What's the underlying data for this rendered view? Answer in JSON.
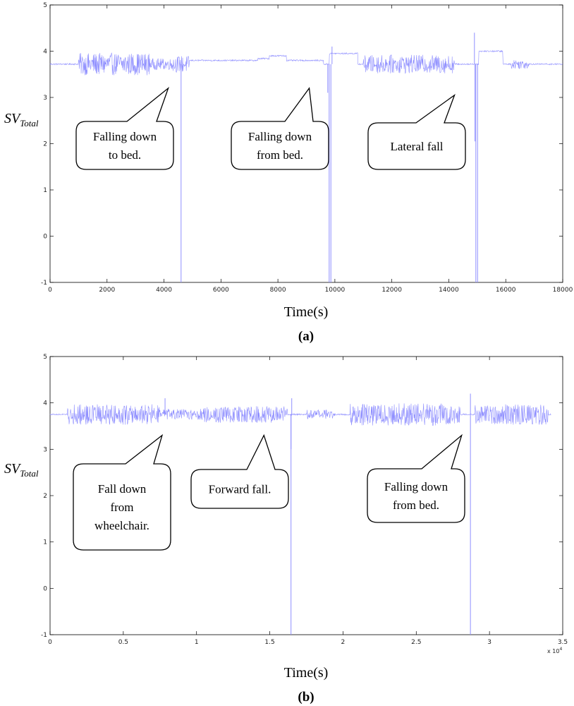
{
  "chart_data": [
    {
      "type": "line",
      "panel_label": "(a)",
      "xlabel": "Time(s)",
      "ylabel": {
        "main": "SV",
        "sub": "Total"
      },
      "xlim": [
        0,
        18000
      ],
      "ylim": [
        -1,
        5
      ],
      "x_ticks": [
        "0",
        "2000",
        "4000",
        "6000",
        "8000",
        "10000",
        "12000",
        "14000",
        "16000",
        "18000"
      ],
      "y_ticks": [
        "5",
        "4",
        "3",
        "2",
        "1",
        "0",
        "-1"
      ],
      "x_exponent": "",
      "line_color": "#8f8fff",
      "baseline": 3.72,
      "segments": [
        {
          "x0": 1000,
          "x1": 3500,
          "amp": 0.24
        },
        {
          "x0": 3500,
          "x1": 4300,
          "amp": 0.12
        },
        {
          "x0": 4300,
          "x1": 4900,
          "amp": 0.18
        },
        {
          "x0": 11000,
          "x1": 14200,
          "amp": 0.2
        },
        {
          "x0": 16200,
          "x1": 16800,
          "amp": 0.1
        }
      ],
      "levels": [
        {
          "x0": 4900,
          "x1": 7300,
          "y": 3.8
        },
        {
          "x0": 7300,
          "x1": 7700,
          "y": 3.84
        },
        {
          "x0": 7700,
          "x1": 8300,
          "y": 3.9
        },
        {
          "x0": 8300,
          "x1": 9600,
          "y": 3.8
        },
        {
          "x0": 9800,
          "x1": 10800,
          "y": 3.95
        },
        {
          "x0": 15050,
          "x1": 15900,
          "y": 4.0
        }
      ],
      "spikes": [
        {
          "x": 4600,
          "y": -1,
          "width": 0
        },
        {
          "x": 9800,
          "y": -1,
          "width": 60
        },
        {
          "x": 14950,
          "y": -1,
          "width": 60
        },
        {
          "x": 9750,
          "y": 3.1,
          "width": 0
        },
        {
          "x": 9900,
          "y": 4.1,
          "width": 0
        },
        {
          "x": 14900,
          "y": 4.4,
          "width": 0
        },
        {
          "x": 14920,
          "y": 2.05,
          "width": 0
        }
      ],
      "annotations": [
        {
          "text": [
            "Falling down",
            "to bed."
          ],
          "x": 4150,
          "y": 3.2
        },
        {
          "text": [
            "Falling down",
            "from bed."
          ],
          "x": 9100,
          "y": 3.2
        },
        {
          "text": [
            "Lateral fall"
          ],
          "x": 14200,
          "y": 3.05
        }
      ]
    },
    {
      "type": "line",
      "panel_label": "(b)",
      "xlabel": "Time(s)",
      "ylabel": {
        "main": "SV",
        "sub": "Total"
      },
      "xlim": [
        0,
        35000
      ],
      "ylim": [
        -1,
        5
      ],
      "x_ticks": [
        "0",
        "0.5",
        "1",
        "1.5",
        "2",
        "2.5",
        "3",
        "3.5"
      ],
      "y_ticks": [
        "5",
        "4",
        "3",
        "2",
        "1",
        "0",
        "-1"
      ],
      "x_exponent": "x 10",
      "x_exponent_power": "4",
      "line_color": "#8f8fff",
      "baseline": 3.75,
      "segments": [
        {
          "x0": 1200,
          "x1": 7500,
          "amp": 0.22
        },
        {
          "x0": 7500,
          "x1": 10500,
          "amp": 0.12
        },
        {
          "x0": 10500,
          "x1": 16200,
          "amp": 0.18
        },
        {
          "x0": 17500,
          "x1": 19500,
          "amp": 0.1
        },
        {
          "x0": 20500,
          "x1": 28000,
          "amp": 0.24
        },
        {
          "x0": 29000,
          "x1": 34000,
          "amp": 0.22
        }
      ],
      "levels": [],
      "spikes": [
        {
          "x": 16450,
          "y": -1,
          "width": 0
        },
        {
          "x": 28700,
          "y": -1,
          "width": 0
        },
        {
          "x": 7850,
          "y": 4.1,
          "width": 0
        },
        {
          "x": 16450,
          "y": 3.0,
          "width": 0
        },
        {
          "x": 16500,
          "y": 4.1,
          "width": 0
        },
        {
          "x": 28700,
          "y": 4.2,
          "width": 0
        }
      ],
      "annotations": [
        {
          "text": [
            "Fall down",
            "from",
            "wheelchair."
          ],
          "x": 7650,
          "y": 3.3
        },
        {
          "text": [
            "Forward fall."
          ],
          "x": 14600,
          "y": 3.3
        },
        {
          "text": [
            "Falling down",
            "from bed."
          ],
          "x": 28100,
          "y": 3.3
        }
      ]
    }
  ]
}
